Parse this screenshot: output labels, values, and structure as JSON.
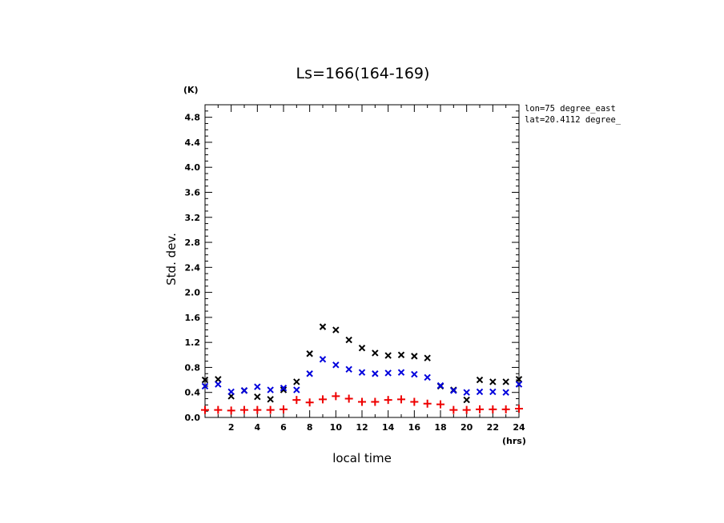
{
  "chart_data": {
    "type": "scatter",
    "title": "Ls=166(164-169)",
    "xlabel": "local time",
    "ylabel": "Std. dev.",
    "x_unit": "(hrs)",
    "y_unit": "(K)",
    "xlim": [
      0,
      24
    ],
    "ylim": [
      0,
      5.0
    ],
    "x_ticks": [
      "2",
      "4",
      "6",
      "8",
      "10",
      "12",
      "14",
      "16",
      "18",
      "20",
      "22",
      "24"
    ],
    "y_ticks": [
      "0.0",
      "0.4",
      "0.8",
      "1.2",
      "1.6",
      "2.0",
      "2.4",
      "2.8",
      "3.2",
      "3.6",
      "4.0",
      "4.4",
      "4.8"
    ],
    "annotations": [
      "lon=75 degree_east",
      "lat=20.4112 degree_"
    ],
    "colors": {
      "black": "#000000",
      "blue": "#0000dd",
      "red": "#ee0000"
    },
    "x": [
      0,
      1,
      2,
      3,
      4,
      5,
      6,
      7,
      8,
      9,
      10,
      11,
      12,
      13,
      14,
      15,
      16,
      17,
      18,
      19,
      20,
      21,
      22,
      23,
      24
    ],
    "series": [
      {
        "color": "black",
        "marker": "x",
        "values": [
          0.6,
          0.61,
          0.34,
          0.43,
          0.33,
          0.29,
          0.44,
          0.57,
          1.02,
          1.45,
          1.4,
          1.24,
          1.11,
          1.03,
          0.99,
          1.0,
          0.98,
          0.95,
          0.5,
          0.44,
          0.28,
          0.6,
          0.57,
          0.57,
          0.61
        ]
      },
      {
        "color": "blue",
        "marker": "x",
        "values": [
          0.5,
          0.53,
          0.41,
          0.43,
          0.49,
          0.44,
          0.47,
          0.44,
          0.7,
          0.93,
          0.84,
          0.77,
          0.72,
          0.7,
          0.71,
          0.72,
          0.69,
          0.64,
          0.51,
          0.43,
          0.4,
          0.41,
          0.41,
          0.4,
          0.53
        ]
      },
      {
        "color": "red",
        "marker": "+",
        "values": [
          0.12,
          0.12,
          0.11,
          0.12,
          0.12,
          0.12,
          0.13,
          0.28,
          0.24,
          0.29,
          0.34,
          0.3,
          0.25,
          0.25,
          0.28,
          0.29,
          0.25,
          0.22,
          0.21,
          0.12,
          0.12,
          0.13,
          0.13,
          0.13,
          0.14
        ]
      }
    ]
  }
}
